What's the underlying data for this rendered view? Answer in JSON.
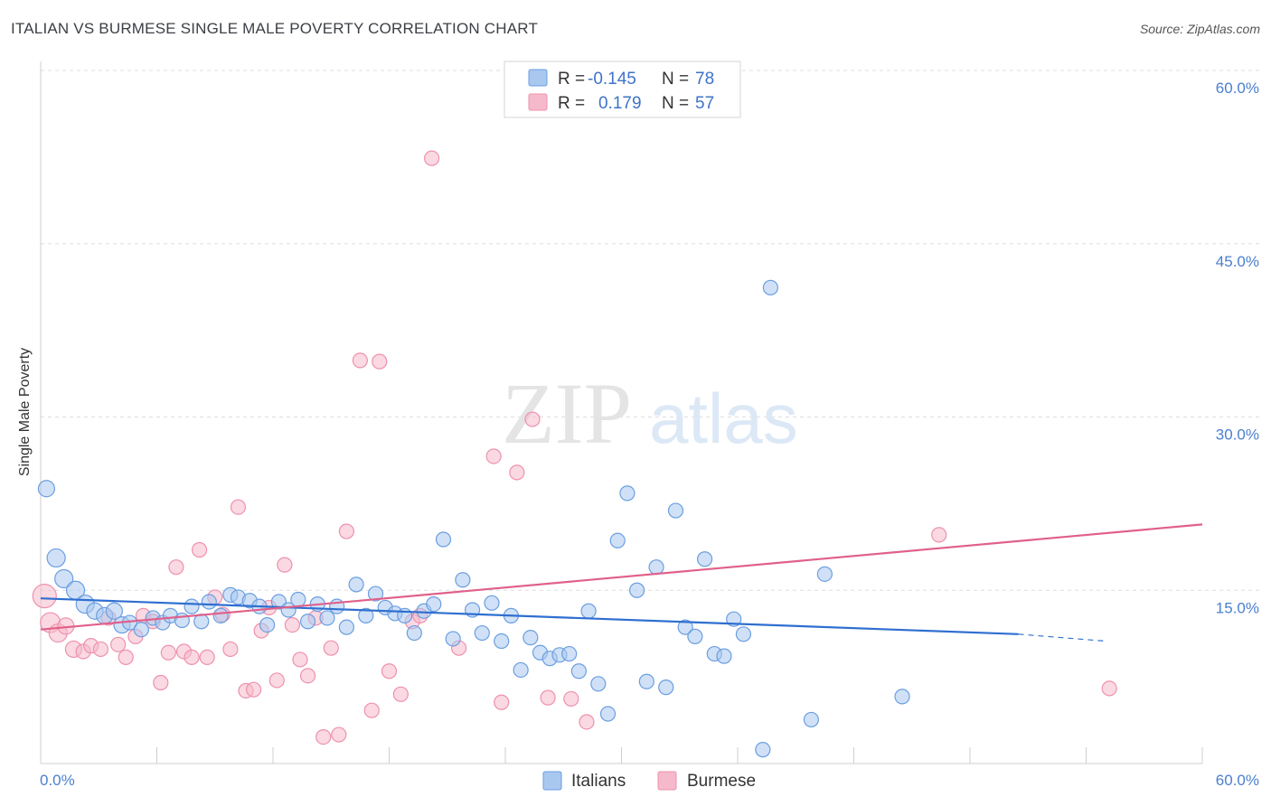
{
  "title": "ITALIAN VS BURMESE SINGLE MALE POVERTY CORRELATION CHART",
  "source": "Source: ZipAtlas.com",
  "watermark": {
    "zip": "ZIP",
    "atlas": "atlas"
  },
  "colors": {
    "italians_fill": "#a9c8f0",
    "italians_stroke": "#6b9ee0",
    "italians_line": "#2f6fd0",
    "burmese_fill": "#f6b9cb",
    "burmese_stroke": "#ee91ad",
    "burmese_line": "#e0608a",
    "tick": "#4a7fcf",
    "grid": "#dddddd"
  },
  "legend": {
    "rows": [
      {
        "series": "Italians",
        "r_label": "R =",
        "r_value": "-0.145",
        "n_label": "N =",
        "n_value": "78"
      },
      {
        "series": "Burmese",
        "r_label": "R =",
        "r_value": "0.179",
        "n_label": "N =",
        "n_value": "57"
      }
    ]
  },
  "chart_data": {
    "type": "scatter",
    "title": "ITALIAN VS BURMESE SINGLE MALE POVERTY CORRELATION CHART",
    "xlabel": "",
    "ylabel": "Single Male Poverty",
    "xlim": [
      0,
      60
    ],
    "ylim": [
      0,
      60
    ],
    "x_tick_labels": [
      "0.0%",
      "60.0%"
    ],
    "y_ticks": [
      15,
      30,
      45,
      60
    ],
    "y_tick_labels": [
      "15.0%",
      "30.0%",
      "45.0%",
      "60.0%"
    ],
    "grid": true,
    "legend_position": "top-center",
    "series": [
      {
        "name": "Italians",
        "r": -0.145,
        "n": 78,
        "trend": {
          "x0": 0,
          "y0": 14.3,
          "x1": 50.5,
          "y1": 11.2,
          "dashed_to_x": 55,
          "dashed_to_y": 10.6
        },
        "points": [
          [
            0.3,
            23.8,
            9
          ],
          [
            0.8,
            17.8,
            10
          ],
          [
            1.2,
            16,
            10
          ],
          [
            1.8,
            15,
            10
          ],
          [
            2.3,
            13.8,
            10
          ],
          [
            2.8,
            13.2,
            9
          ],
          [
            3.3,
            12.8,
            9
          ],
          [
            3.8,
            13.2,
            9
          ],
          [
            4.2,
            12,
            9
          ],
          [
            4.6,
            12.2,
            8
          ],
          [
            5.2,
            11.6,
            8
          ],
          [
            5.8,
            12.6,
            8
          ],
          [
            6.3,
            12.2,
            8
          ],
          [
            6.7,
            12.8,
            8
          ],
          [
            7.3,
            12.4,
            8
          ],
          [
            7.8,
            13.6,
            8
          ],
          [
            8.3,
            12.3,
            8
          ],
          [
            8.7,
            14,
            8
          ],
          [
            9.3,
            12.8,
            8
          ],
          [
            9.8,
            14.6,
            8
          ],
          [
            10.2,
            14.4,
            8
          ],
          [
            10.8,
            14.1,
            8
          ],
          [
            11.3,
            13.6,
            8
          ],
          [
            11.7,
            12,
            8
          ],
          [
            12.3,
            14,
            8
          ],
          [
            12.8,
            13.3,
            8
          ],
          [
            13.3,
            14.2,
            8
          ],
          [
            13.8,
            12.3,
            8
          ],
          [
            14.3,
            13.8,
            8
          ],
          [
            14.8,
            12.6,
            8
          ],
          [
            15.3,
            13.6,
            8
          ],
          [
            15.8,
            11.8,
            8
          ],
          [
            16.3,
            15.5,
            8
          ],
          [
            16.8,
            12.8,
            8
          ],
          [
            17.3,
            14.7,
            8
          ],
          [
            17.8,
            13.5,
            8
          ],
          [
            18.3,
            13,
            8
          ],
          [
            18.8,
            12.8,
            8
          ],
          [
            19.3,
            11.3,
            8
          ],
          [
            19.8,
            13.2,
            8
          ],
          [
            20.3,
            13.8,
            8
          ],
          [
            20.8,
            19.4,
            8
          ],
          [
            21.3,
            10.8,
            8
          ],
          [
            21.8,
            15.9,
            8
          ],
          [
            22.3,
            13.3,
            8
          ],
          [
            22.8,
            11.3,
            8
          ],
          [
            23.3,
            13.9,
            8
          ],
          [
            23.8,
            10.6,
            8
          ],
          [
            24.3,
            12.8,
            8
          ],
          [
            24.8,
            8.1,
            8
          ],
          [
            25.3,
            10.9,
            8
          ],
          [
            25.8,
            9.6,
            8
          ],
          [
            26.3,
            9.1,
            8
          ],
          [
            26.8,
            9.4,
            8
          ],
          [
            27.3,
            9.5,
            8
          ],
          [
            27.8,
            8,
            8
          ],
          [
            28.3,
            13.2,
            8
          ],
          [
            28.8,
            6.9,
            8
          ],
          [
            29.3,
            4.3,
            8
          ],
          [
            29.8,
            19.3,
            8
          ],
          [
            30.3,
            23.4,
            8
          ],
          [
            30.8,
            15,
            8
          ],
          [
            31.3,
            7.1,
            8
          ],
          [
            31.8,
            17,
            8
          ],
          [
            32.3,
            6.6,
            8
          ],
          [
            32.8,
            21.9,
            8
          ],
          [
            33.3,
            11.8,
            8
          ],
          [
            33.8,
            11,
            8
          ],
          [
            34.3,
            17.7,
            8
          ],
          [
            34.8,
            9.5,
            8
          ],
          [
            35.3,
            9.3,
            8
          ],
          [
            35.8,
            12.5,
            8
          ],
          [
            36.3,
            11.2,
            8
          ],
          [
            37.3,
            1.2,
            8
          ],
          [
            37.7,
            41.2,
            8
          ],
          [
            39.8,
            3.8,
            8
          ],
          [
            40.5,
            16.4,
            8
          ],
          [
            44.5,
            5.8,
            8
          ]
        ]
      },
      {
        "name": "Burmese",
        "r": 0.179,
        "n": 57,
        "trend": {
          "x0": 0,
          "y0": 11.6,
          "x1": 60,
          "y1": 20.7
        },
        "points": [
          [
            0.2,
            14.5,
            13
          ],
          [
            0.5,
            12.2,
            11
          ],
          [
            0.9,
            11.3,
            10
          ],
          [
            1.3,
            11.9,
            9
          ],
          [
            1.7,
            9.9,
            9
          ],
          [
            2.2,
            9.7,
            8
          ],
          [
            2.6,
            10.2,
            8
          ],
          [
            3.1,
            9.9,
            8
          ],
          [
            3.5,
            12.6,
            8
          ],
          [
            4,
            10.3,
            8
          ],
          [
            4.4,
            9.2,
            8
          ],
          [
            4.9,
            11,
            8
          ],
          [
            5.3,
            12.8,
            8
          ],
          [
            5.8,
            12.3,
            8
          ],
          [
            6.2,
            7,
            8
          ],
          [
            6.6,
            9.6,
            8
          ],
          [
            7,
            17,
            8
          ],
          [
            7.4,
            9.7,
            8
          ],
          [
            7.8,
            9.2,
            8
          ],
          [
            8.2,
            18.5,
            8
          ],
          [
            8.6,
            9.2,
            8
          ],
          [
            9,
            14.4,
            8
          ],
          [
            9.4,
            12.9,
            8
          ],
          [
            9.8,
            9.9,
            8
          ],
          [
            10.2,
            22.2,
            8
          ],
          [
            10.6,
            6.3,
            8
          ],
          [
            11,
            6.4,
            8
          ],
          [
            11.4,
            11.5,
            8
          ],
          [
            11.8,
            13.5,
            8
          ],
          [
            12.2,
            7.2,
            8
          ],
          [
            12.6,
            17.2,
            8
          ],
          [
            13,
            12,
            8
          ],
          [
            13.4,
            9,
            8
          ],
          [
            13.8,
            7.6,
            8
          ],
          [
            14.2,
            12.6,
            8
          ],
          [
            14.6,
            2.3,
            8
          ],
          [
            15,
            10,
            8
          ],
          [
            15.4,
            2.5,
            8
          ],
          [
            15.8,
            20.1,
            8
          ],
          [
            16.5,
            34.9,
            8
          ],
          [
            17.1,
            4.6,
            8
          ],
          [
            17.5,
            34.8,
            8
          ],
          [
            18,
            8,
            8
          ],
          [
            18.6,
            6,
            8
          ],
          [
            19.2,
            12.3,
            8
          ],
          [
            19.6,
            12.8,
            8
          ],
          [
            20.2,
            52.4,
            8
          ],
          [
            21.6,
            10,
            8
          ],
          [
            23.4,
            26.6,
            8
          ],
          [
            23.8,
            5.3,
            8
          ],
          [
            24.6,
            25.2,
            8
          ],
          [
            25.4,
            29.8,
            8
          ],
          [
            26.2,
            5.7,
            8
          ],
          [
            27.4,
            5.6,
            8
          ],
          [
            28.2,
            3.6,
            8
          ],
          [
            46.4,
            19.8,
            8
          ],
          [
            55.2,
            6.5,
            8
          ]
        ]
      }
    ]
  }
}
